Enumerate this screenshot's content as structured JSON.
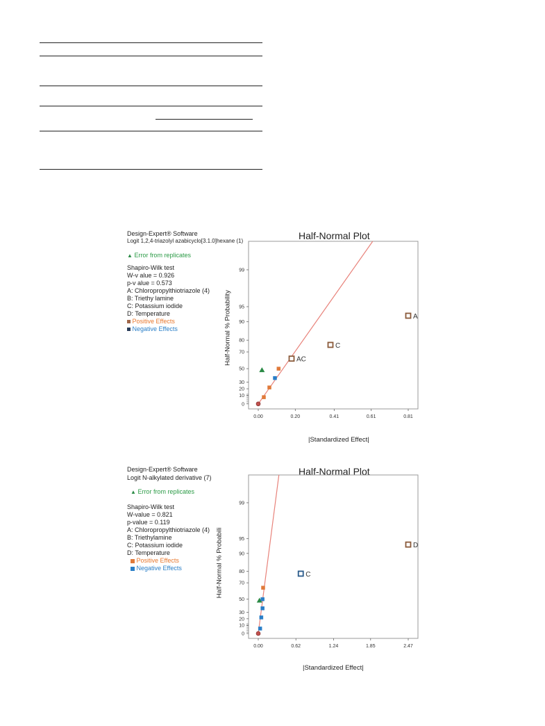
{
  "chart_data": [
    {
      "type": "scatter",
      "title": "Half-Normal Plot",
      "software": "Design-Expert® Software",
      "response": "Logit 1,2,4-triazolyl azabicyclo[3.1.0]hexane (1)",
      "error_label": "Error from replicates",
      "test_name": "Shapiro-Wilk test",
      "w_value": "W-v alue = 0.926",
      "p_value": "p-v alue = 0.573",
      "factors": [
        "A: Chloropropylthiotriazole (4)",
        "B: Triethy lamine",
        "C: Potassium iodide",
        "D: Temperature"
      ],
      "positive_label": "Positive Effects",
      "negative_label": "Negative Effects",
      "xlabel": "|Standardized Effect|",
      "ylabel": "Half-Normal % Probability",
      "xlim": [
        0,
        0.81
      ],
      "x_ticks": [
        "0.00",
        "0.20",
        "0.41",
        "0.61",
        "0.81"
      ],
      "y_ticks": [
        "0",
        "10",
        "20",
        "30",
        "50",
        "70",
        "80",
        "90",
        "95",
        "99"
      ],
      "fit_line": [
        [
          0,
          0
        ],
        [
          0.6,
          99.5
        ]
      ],
      "points": [
        {
          "x": 0.0,
          "y": 0,
          "kind": "error-origin",
          "label": ""
        },
        {
          "x": 0.02,
          "y": 48,
          "kind": "error",
          "label": ""
        },
        {
          "x": 0.03,
          "y": 8,
          "kind": "positive",
          "label": ""
        },
        {
          "x": 0.06,
          "y": 22,
          "kind": "positive",
          "label": ""
        },
        {
          "x": 0.09,
          "y": 36,
          "kind": "negative",
          "label": ""
        },
        {
          "x": 0.11,
          "y": 50,
          "kind": "positive",
          "label": ""
        },
        {
          "x": 0.18,
          "y": 62,
          "kind": "positive",
          "label": "AC"
        },
        {
          "x": 0.39,
          "y": 76,
          "kind": "positive",
          "label": "C"
        },
        {
          "x": 0.81,
          "y": 92,
          "kind": "positive",
          "label": "A"
        }
      ]
    },
    {
      "type": "scatter",
      "title": "Half-Normal Plot",
      "software": "Design-Expert® Software",
      "response": "Logit  N-alkylated derivative (7)",
      "error_label": "Error from replicates",
      "test_name": "Shapiro-Wilk test",
      "w_value": "W-value = 0.821",
      "p_value": "p-value = 0.119",
      "factors": [
        "A: Chloropropylthiotriazole (4)",
        "B: Triethylamine",
        "C: Potassium iodide",
        "D: Temperature"
      ],
      "positive_label": "Positive Effects",
      "negative_label": "Negative Effects",
      "xlabel": "|Standardized Effect|",
      "ylabel": "Half-Normal % Probabili",
      "xlim": [
        0,
        2.47
      ],
      "x_ticks": [
        "0.00",
        "0.62",
        "1.24",
        "1.85",
        "2.47"
      ],
      "y_ticks": [
        "0",
        "10",
        "20",
        "30",
        "50",
        "70",
        "80",
        "90",
        "95",
        "99"
      ],
      "fit_line": [
        [
          0,
          0
        ],
        [
          0.33,
          99.5
        ]
      ],
      "points": [
        {
          "x": 0.0,
          "y": 0,
          "kind": "error-origin",
          "label": ""
        },
        {
          "x": 0.02,
          "y": 48,
          "kind": "error",
          "label": ""
        },
        {
          "x": 0.03,
          "y": 6,
          "kind": "negative",
          "label": ""
        },
        {
          "x": 0.05,
          "y": 22,
          "kind": "negative",
          "label": ""
        },
        {
          "x": 0.07,
          "y": 36,
          "kind": "negative",
          "label": ""
        },
        {
          "x": 0.07,
          "y": 50,
          "kind": "negative",
          "label": ""
        },
        {
          "x": 0.08,
          "y": 64,
          "kind": "positive",
          "label": ""
        },
        {
          "x": 0.7,
          "y": 78,
          "kind": "negative",
          "label": "C"
        },
        {
          "x": 2.47,
          "y": 93,
          "kind": "positive",
          "label": "D"
        }
      ]
    }
  ]
}
